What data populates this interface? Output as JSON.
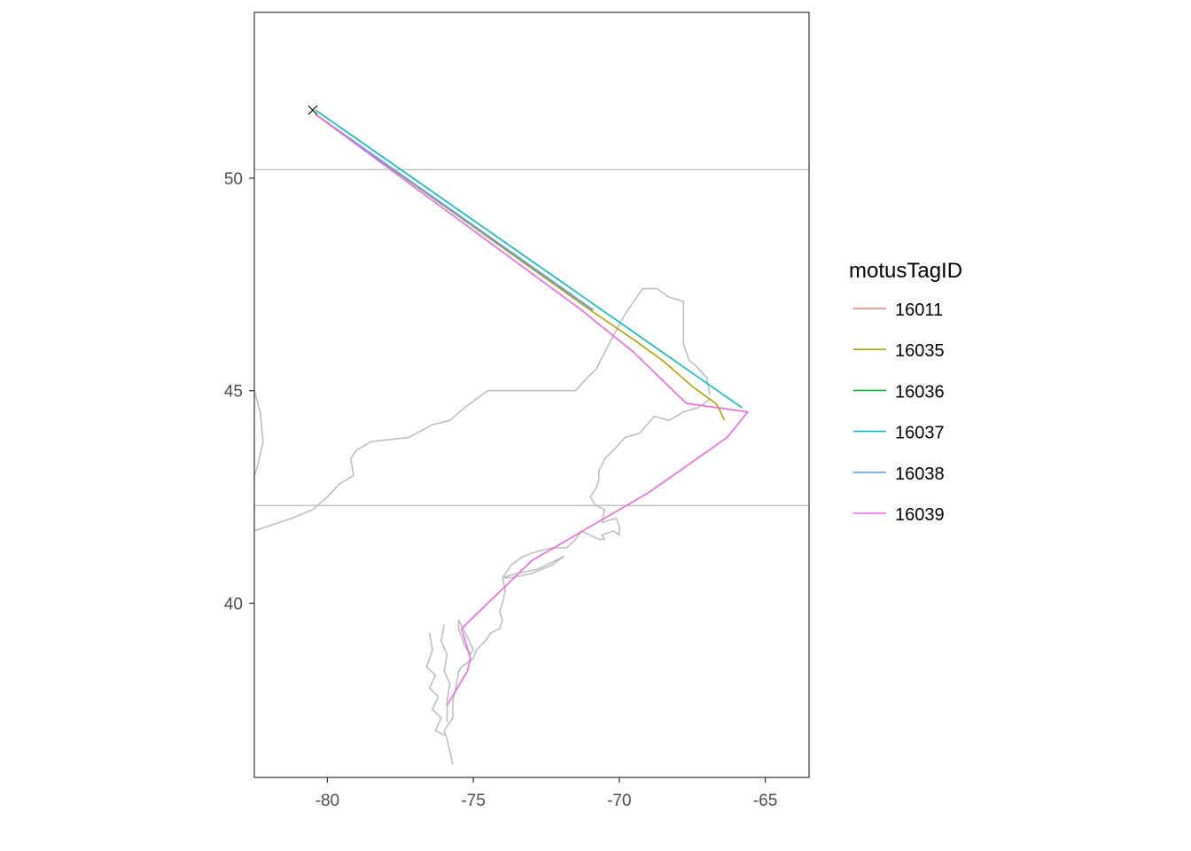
{
  "chart_data": {
    "type": "line",
    "title": "",
    "xlabel": "",
    "ylabel": "",
    "xlim": [
      -82.5,
      -63.5
    ],
    "ylim": [
      35.9,
      53.9
    ],
    "x_ticks": [
      -80,
      -75,
      -70,
      -65
    ],
    "x_tick_labels": [
      "-80",
      "-75",
      "-70",
      "-65"
    ],
    "y_ticks": [
      40,
      45,
      50
    ],
    "y_tick_labels": [
      "40",
      "45",
      "50"
    ],
    "grid": false,
    "legend": {
      "title": "motusTagID",
      "placement": "right",
      "entries": [
        {
          "label": "16011",
          "color": "#F8766D"
        },
        {
          "label": "16035",
          "color": "#B79F00"
        },
        {
          "label": "16036",
          "color": "#00BA38"
        },
        {
          "label": "16037",
          "color": "#00BFC4"
        },
        {
          "label": "16038",
          "color": "#619CFF"
        },
        {
          "label": "16039",
          "color": "#F564E3"
        }
      ]
    },
    "marker": {
      "symbol": "x",
      "x": -80.5,
      "y": 51.6,
      "color": "#000000"
    },
    "series": [
      {
        "name": "16011",
        "color": "#F8766D",
        "x": [
          -80.4,
          -70.9
        ],
        "y": [
          51.5,
          46.9
        ]
      },
      {
        "name": "16035",
        "color": "#B79F00",
        "x": [
          -80.4,
          -71.0,
          -69.5,
          -68.5,
          -67.5,
          -66.9,
          -66.7,
          -66.6,
          -66.4
        ],
        "y": [
          51.5,
          46.9,
          46.2,
          45.7,
          45.1,
          44.8,
          44.7,
          44.6,
          44.3
        ]
      },
      {
        "name": "16036",
        "color": "#00BA38",
        "x": [
          -80.4,
          -70.9
        ],
        "y": [
          51.5,
          46.9
        ]
      },
      {
        "name": "16037",
        "color": "#00BFC4",
        "x": [
          -80.4,
          -65.8
        ],
        "y": [
          51.6,
          44.6
        ]
      },
      {
        "name": "16038",
        "color": "#619CFF",
        "x": [
          -80.4,
          -70.9
        ],
        "y": [
          51.5,
          46.9
        ]
      },
      {
        "name": "16039",
        "color": "#F564E3",
        "x": [
          -80.4,
          -71.3,
          -69.5,
          -67.7,
          -65.6,
          -66.3,
          -69.0,
          -73.0,
          -75.4,
          -75.1,
          -75.2,
          -75.9
        ],
        "y": [
          51.5,
          46.9,
          45.9,
          44.7,
          44.5,
          43.9,
          42.6,
          41.0,
          39.4,
          38.7,
          38.4,
          37.6
        ]
      }
    ],
    "reference_lines": [
      {
        "orientation": "horizontal",
        "y": 50.2,
        "color": "#bebebe"
      },
      {
        "orientation": "horizontal",
        "y": 42.3,
        "color": "#bebebe"
      }
    ],
    "basemap": {
      "color": "#bebebe",
      "boundaries": [
        {
          "name": "maine-canada-border",
          "x": [
            -71.1,
            -70.8,
            -70.5,
            -70.2,
            -69.8,
            -69.2,
            -68.7,
            -68.3,
            -67.8,
            -67.8,
            -67.6,
            -67.4,
            -67.0,
            -66.9
          ],
          "y": [
            45.3,
            45.5,
            45.9,
            46.3,
            46.8,
            47.4,
            47.4,
            47.2,
            47.1,
            46.1,
            45.7,
            45.6,
            45.3,
            44.9
          ]
        },
        {
          "name": "us-canada-border-north",
          "x": [
            -71.1,
            -71.5,
            -72.5,
            -73.4,
            -74.5,
            -74.9,
            -75.3,
            -75.8,
            -76.4,
            -77.2,
            -78.5,
            -79.0,
            -79.2,
            -79.1,
            -79.6,
            -80.0,
            -80.5,
            -81.2,
            -82.5
          ],
          "y": [
            45.3,
            45.0,
            45.0,
            45.0,
            45.0,
            44.8,
            44.6,
            44.3,
            44.2,
            43.9,
            43.8,
            43.6,
            43.4,
            43.0,
            42.8,
            42.5,
            42.2,
            42.0,
            41.7
          ]
        },
        {
          "name": "lake-superior-edge",
          "x": [
            -82.5,
            -82.3,
            -82.2,
            -82.4,
            -82.5
          ],
          "y": [
            45.0,
            44.5,
            43.8,
            43.2,
            43.0
          ]
        },
        {
          "name": "coast-gulf-of-maine",
          "x": [
            -66.9,
            -67.3,
            -67.8,
            -68.3,
            -68.8,
            -69.3,
            -69.8,
            -70.2,
            -70.5,
            -70.7,
            -70.7,
            -70.8,
            -71.0,
            -70.8,
            -70.5,
            -70.6,
            -70.1,
            -70.0,
            -70.0,
            -70.2,
            -70.6,
            -70.5,
            -70.7,
            -71.0,
            -71.3,
            -71.5
          ],
          "y": [
            44.8,
            44.6,
            44.5,
            44.3,
            44.4,
            44.0,
            43.9,
            43.6,
            43.4,
            43.1,
            42.9,
            42.7,
            42.5,
            42.3,
            42.2,
            41.9,
            42.0,
            41.8,
            41.6,
            41.7,
            41.6,
            41.5,
            41.5,
            41.6,
            41.7,
            41.5
          ]
        },
        {
          "name": "coast-southern-new-england",
          "x": [
            -71.5,
            -71.8,
            -72.3,
            -72.9,
            -73.3,
            -73.7,
            -74.0,
            -73.9,
            -74.0,
            -74.1,
            -74.0,
            -74.1,
            -74.4,
            -74.6,
            -74.9,
            -75.0,
            -75.4,
            -75.5,
            -75.6,
            -75.7,
            -75.7,
            -76.0,
            -75.9,
            -75.7
          ],
          "y": [
            41.5,
            41.3,
            41.3,
            41.2,
            41.1,
            40.9,
            40.6,
            40.3,
            40.0,
            39.8,
            39.6,
            39.4,
            39.3,
            39.1,
            38.9,
            38.7,
            38.5,
            38.4,
            38.0,
            37.7,
            37.3,
            37.0,
            36.8,
            36.2
          ]
        },
        {
          "name": "long-island",
          "x": [
            -74.0,
            -73.5,
            -72.8,
            -72.2,
            -71.9,
            -72.3,
            -73.0,
            -73.7,
            -74.0
          ],
          "y": [
            40.6,
            40.7,
            40.8,
            41.0,
            41.1,
            40.9,
            40.7,
            40.6,
            40.6
          ]
        },
        {
          "name": "delaware-bay",
          "x": [
            -75.0,
            -75.2,
            -75.5,
            -75.5,
            -75.3,
            -75.1,
            -75.0
          ],
          "y": [
            38.9,
            39.2,
            39.6,
            39.4,
            39.0,
            38.8,
            38.9
          ]
        },
        {
          "name": "chesapeake-bay-west",
          "x": [
            -76.5,
            -76.4,
            -76.6,
            -76.3,
            -76.5,
            -76.2,
            -76.4,
            -76.1,
            -76.3,
            -76.0
          ],
          "y": [
            39.3,
            38.9,
            38.5,
            38.3,
            38.0,
            37.8,
            37.5,
            37.3,
            37.0,
            36.9
          ]
        },
        {
          "name": "chesapeake-bay-east",
          "x": [
            -76.0,
            -76.1,
            -75.9,
            -76.0,
            -75.8,
            -75.9,
            -75.9
          ],
          "y": [
            39.5,
            39.1,
            38.8,
            38.4,
            38.1,
            37.7,
            37.2
          ]
        }
      ]
    }
  }
}
